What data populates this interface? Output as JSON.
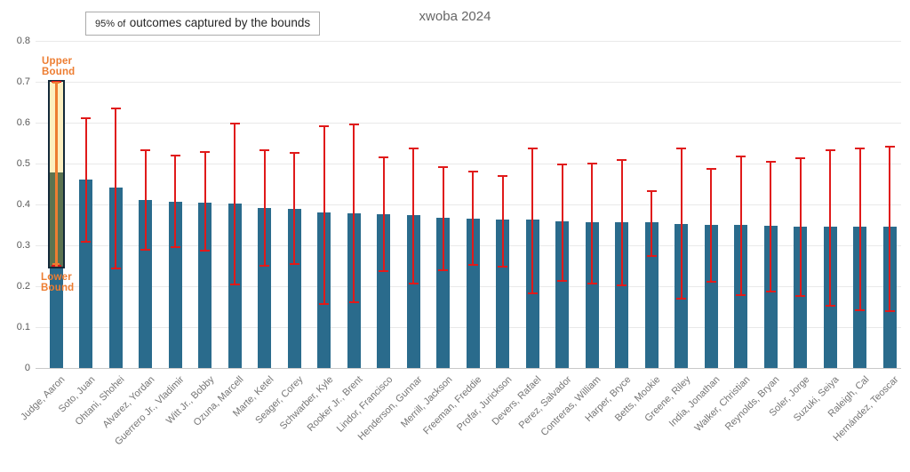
{
  "title": "xwoba 2024",
  "note": {
    "prefix": "95% of",
    "text": "outcomes captured by the bounds"
  },
  "annotations": {
    "upper": "Upper Bound",
    "lower": "Lower Bound"
  },
  "chart_data": {
    "type": "bar",
    "title": "xwoba 2024",
    "xlabel": "",
    "ylabel": "",
    "ylim": [
      0,
      0.8
    ],
    "yticks": [
      "0",
      "0.1",
      "0.2",
      "0.3",
      "0.4",
      "0.5",
      "0.6",
      "0.7",
      "0.8"
    ],
    "grid": true,
    "legend_note": "95% of outcomes captured by the bounds",
    "highlight_index": 0,
    "categories": [
      "Judge, Aaron",
      "Soto, Juan",
      "Ohtani, Shohei",
      "Alvarez, Yordan",
      "Guerrero Jr., Vladimir",
      "Witt Jr., Bobby",
      "Ozuna, Marcell",
      "Marte, Ketel",
      "Seager, Corey",
      "Schwarber, Kyle",
      "Rooker Jr., Brent",
      "Lindor, Francisco",
      "Henderson, Gunnar",
      "Merrill, Jackson",
      "Freeman, Freddie",
      "Profar, Jurickson",
      "Devers, Rafael",
      "Perez, Salvador",
      "Contreras, William",
      "Harper, Bryce",
      "Betts, Mookie",
      "Greene, Riley",
      "India, Jonathan",
      "Walker, Christian",
      "Reynolds, Bryan",
      "Soler, Jorge",
      "Suzuki, Seiya",
      "Raleigh, Cal",
      "Hernández, Teoscar"
    ],
    "series": [
      {
        "name": "xwOBA",
        "values": [
          0.478,
          0.46,
          0.442,
          0.41,
          0.407,
          0.405,
          0.402,
          0.392,
          0.39,
          0.38,
          0.378,
          0.377,
          0.373,
          0.367,
          0.366,
          0.362,
          0.362,
          0.358,
          0.357,
          0.356,
          0.356,
          0.352,
          0.35,
          0.35,
          0.348,
          0.345,
          0.345,
          0.345,
          0.345
        ]
      },
      {
        "name": "lower_bound",
        "values": [
          0.243,
          0.307,
          0.242,
          0.287,
          0.293,
          0.285,
          0.203,
          0.247,
          0.252,
          0.155,
          0.158,
          0.234,
          0.204,
          0.237,
          0.249,
          0.246,
          0.181,
          0.211,
          0.205,
          0.199,
          0.272,
          0.167,
          0.209,
          0.177,
          0.184,
          0.174,
          0.149,
          0.14,
          0.136
        ]
      },
      {
        "name": "upper_bound",
        "values": [
          0.705,
          0.614,
          0.637,
          0.534,
          0.521,
          0.531,
          0.6,
          0.534,
          0.529,
          0.594,
          0.598,
          0.517,
          0.539,
          0.493,
          0.482,
          0.472,
          0.54,
          0.501,
          0.503,
          0.51,
          0.434,
          0.539,
          0.49,
          0.519,
          0.507,
          0.515,
          0.535,
          0.54,
          0.544
        ]
      }
    ],
    "colors": {
      "bar": "#2a6b8c",
      "error": "#e01a1a",
      "highlight_fill": "#fcefc0",
      "highlight_overlap": "#5b7350",
      "highlight_border": "#13293a",
      "annotation_orange": "#ed7d31"
    }
  }
}
